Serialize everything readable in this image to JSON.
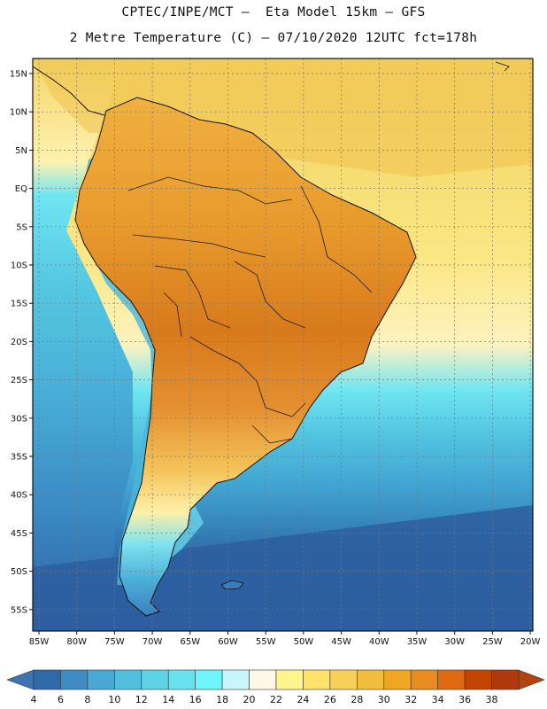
{
  "header": {
    "title_line1": "CPTEC/INPE/MCT –  Eta Model 15km – GFS",
    "title_line2": "2 Metre Temperature (C) – 07/10/2020 12UTC fct=178h"
  },
  "axes": {
    "lat_labels": [
      "15N",
      "10N",
      "5N",
      "EQ",
      "5S",
      "10S",
      "15S",
      "20S",
      "25S",
      "30S",
      "35S",
      "40S",
      "45S",
      "50S",
      "55S"
    ],
    "lon_labels": [
      "85W",
      "80W",
      "75W",
      "70W",
      "65W",
      "60W",
      "55W",
      "50W",
      "45W",
      "40W",
      "35W",
      "30W",
      "25W",
      "20W"
    ]
  },
  "colorbar": {
    "labels": [
      "4",
      "6",
      "8",
      "10",
      "12",
      "14",
      "16",
      "18",
      "20",
      "22",
      "24",
      "26",
      "28",
      "30",
      "32",
      "34",
      "36",
      "38"
    ],
    "colors": [
      "#2f6aa8",
      "#3f8cc2",
      "#4aa9d4",
      "#52bfdf",
      "#5fd3e6",
      "#69e2ef",
      "#6ff5fb",
      "#c9f6fa",
      "#fff8e8",
      "#fff48e",
      "#fde36a",
      "#f7d05a",
      "#f0bd3c",
      "#eea623",
      "#e88b20",
      "#e06a12",
      "#c44500",
      "#b03a0e"
    ],
    "under_color": "#3f73b0",
    "over_color": "#b04512"
  },
  "map_colors": {
    "ocean_tropical": "#f7e27a",
    "ocean_warm": "#fcef9a",
    "ocean_mid": "#5fd0e5",
    "ocean_cool": "#3f9fcf",
    "ocean_cold": "#2f62a3",
    "land_hot": "#e58a24",
    "land_very_hot": "#c65a10",
    "andes": "#46b4d8"
  }
}
